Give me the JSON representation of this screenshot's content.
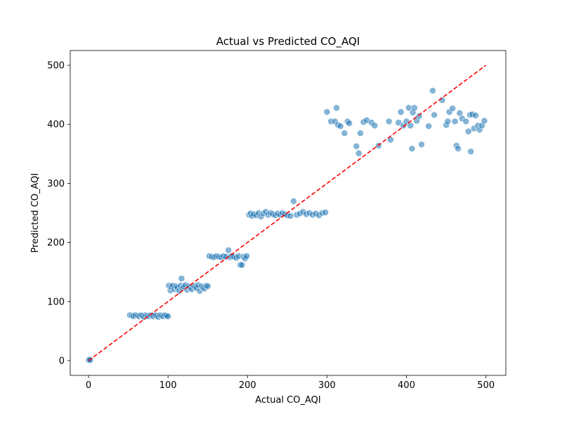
{
  "chart_data": {
    "type": "scatter",
    "title": "Actual vs Predicted CO_AQI",
    "xlabel": "Actual CO_AQI",
    "ylabel": "Predicted CO_AQI",
    "xlim": [
      -23,
      525
    ],
    "ylim": [
      -25,
      525
    ],
    "xticks": [
      0,
      100,
      200,
      300,
      400,
      500
    ],
    "yticks": [
      0,
      100,
      200,
      300,
      400,
      500
    ],
    "xtick_labels": [
      "0",
      "100",
      "200",
      "300",
      "400",
      "500"
    ],
    "ytick_labels": [
      "0",
      "100",
      "200",
      "300",
      "400",
      "500"
    ],
    "grid": false,
    "point_color": "#1f77b4",
    "point_edge_color": "#ffffff",
    "reference_line": {
      "x": [
        0,
        500
      ],
      "y": [
        0,
        500
      ],
      "color": "#ff0000",
      "style": "dashed"
    },
    "points": [
      [
        0,
        1
      ],
      [
        1,
        2
      ],
      [
        2,
        1
      ],
      [
        52,
        77
      ],
      [
        55,
        76
      ],
      [
        57,
        75
      ],
      [
        59,
        77
      ],
      [
        62,
        76
      ],
      [
        64,
        75
      ],
      [
        66,
        77
      ],
      [
        68,
        76
      ],
      [
        70,
        74
      ],
      [
        72,
        77
      ],
      [
        74,
        76
      ],
      [
        76,
        75
      ],
      [
        78,
        77
      ],
      [
        80,
        76
      ],
      [
        82,
        75
      ],
      [
        84,
        77
      ],
      [
        86,
        76
      ],
      [
        88,
        74
      ],
      [
        90,
        77
      ],
      [
        92,
        76
      ],
      [
        94,
        75
      ],
      [
        96,
        77
      ],
      [
        98,
        76
      ],
      [
        100,
        75
      ],
      [
        101,
        127
      ],
      [
        103,
        119
      ],
      [
        104,
        125
      ],
      [
        106,
        127
      ],
      [
        108,
        121
      ],
      [
        110,
        126
      ],
      [
        112,
        124
      ],
      [
        114,
        118
      ],
      [
        116,
        127
      ],
      [
        117,
        139
      ],
      [
        118,
        123
      ],
      [
        120,
        125
      ],
      [
        122,
        128
      ],
      [
        124,
        120
      ],
      [
        126,
        126
      ],
      [
        128,
        124
      ],
      [
        130,
        121
      ],
      [
        132,
        127
      ],
      [
        134,
        125
      ],
      [
        136,
        123
      ],
      [
        138,
        128
      ],
      [
        140,
        118
      ],
      [
        142,
        126
      ],
      [
        144,
        124
      ],
      [
        146,
        122
      ],
      [
        148,
        127
      ],
      [
        150,
        126
      ],
      [
        152,
        177
      ],
      [
        155,
        176
      ],
      [
        158,
        175
      ],
      [
        161,
        177
      ],
      [
        164,
        176
      ],
      [
        167,
        175
      ],
      [
        170,
        177
      ],
      [
        173,
        176
      ],
      [
        176,
        187
      ],
      [
        178,
        175
      ],
      [
        180,
        177
      ],
      [
        183,
        176
      ],
      [
        186,
        174
      ],
      [
        189,
        177
      ],
      [
        191,
        162
      ],
      [
        193,
        162
      ],
      [
        195,
        176
      ],
      [
        197,
        173
      ],
      [
        199,
        177
      ],
      [
        202,
        247
      ],
      [
        204,
        249
      ],
      [
        206,
        245
      ],
      [
        208,
        248
      ],
      [
        211,
        246
      ],
      [
        214,
        250
      ],
      [
        217,
        244
      ],
      [
        220,
        249
      ],
      [
        223,
        252
      ],
      [
        226,
        247
      ],
      [
        229,
        250
      ],
      [
        232,
        248
      ],
      [
        235,
        246
      ],
      [
        238,
        249
      ],
      [
        241,
        247
      ],
      [
        244,
        250
      ],
      [
        247,
        248
      ],
      [
        250,
        246
      ],
      [
        254,
        245
      ],
      [
        258,
        270
      ],
      [
        262,
        247
      ],
      [
        266,
        249
      ],
      [
        270,
        252
      ],
      [
        274,
        248
      ],
      [
        278,
        250
      ],
      [
        282,
        247
      ],
      [
        286,
        249
      ],
      [
        290,
        246
      ],
      [
        294,
        250
      ],
      [
        298,
        251
      ],
      [
        300,
        421
      ],
      [
        305,
        405
      ],
      [
        310,
        405
      ],
      [
        312,
        428
      ],
      [
        314,
        399
      ],
      [
        317,
        397
      ],
      [
        322,
        385
      ],
      [
        326,
        405
      ],
      [
        328,
        402
      ],
      [
        337,
        363
      ],
      [
        340,
        351
      ],
      [
        342,
        385
      ],
      [
        346,
        404
      ],
      [
        350,
        407
      ],
      [
        356,
        403
      ],
      [
        360,
        398
      ],
      [
        365,
        364
      ],
      [
        378,
        405
      ],
      [
        380,
        374
      ],
      [
        390,
        403
      ],
      [
        393,
        421
      ],
      [
        396,
        398
      ],
      [
        400,
        405
      ],
      [
        403,
        428
      ],
      [
        405,
        398
      ],
      [
        407,
        359
      ],
      [
        408,
        420
      ],
      [
        410,
        428
      ],
      [
        413,
        406
      ],
      [
        416,
        414
      ],
      [
        419,
        366
      ],
      [
        428,
        397
      ],
      [
        433,
        457
      ],
      [
        435,
        416
      ],
      [
        445,
        441
      ],
      [
        450,
        399
      ],
      [
        452,
        405
      ],
      [
        454,
        421
      ],
      [
        458,
        427
      ],
      [
        461,
        405
      ],
      [
        463,
        364
      ],
      [
        465,
        359
      ],
      [
        467,
        419
      ],
      [
        470,
        410
      ],
      [
        475,
        405
      ],
      [
        478,
        388
      ],
      [
        480,
        416
      ],
      [
        481,
        354
      ],
      [
        483,
        417
      ],
      [
        485,
        393
      ],
      [
        487,
        415
      ],
      [
        490,
        398
      ],
      [
        492,
        391
      ],
      [
        495,
        398
      ],
      [
        498,
        406
      ]
    ]
  }
}
